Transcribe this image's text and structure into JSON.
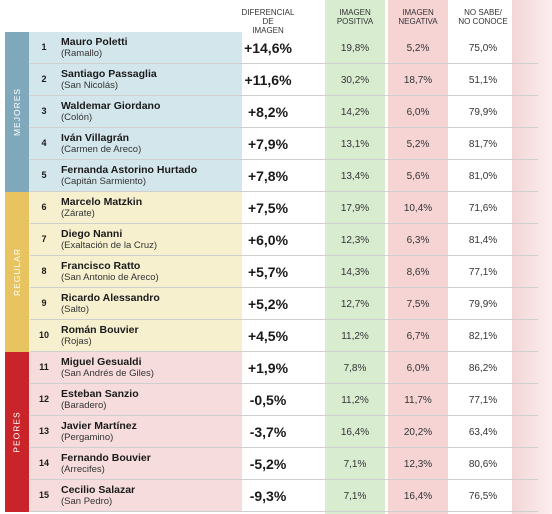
{
  "headers": {
    "diff": [
      "DIFERENCIAL DE",
      "IMAGEN"
    ],
    "pos": [
      "IMAGEN",
      "POSITIVA"
    ],
    "neg": [
      "IMAGEN",
      "NEGATIVA"
    ],
    "ns": [
      "NO SABE/",
      "NO CONOCE"
    ]
  },
  "colors": {
    "pos_column": "#d8ecd0",
    "neg_column": "#f6d4d4",
    "group_bg": [
      "#d3e6ec",
      "#f6f0cf",
      "#f6dcdc"
    ],
    "group_strip": [
      "#7fa8ba",
      "#e7c45f",
      "#c9242a"
    ]
  },
  "groups": [
    {
      "label": "MEJORES",
      "rows": 5
    },
    {
      "label": "REGULAR",
      "rows": 5
    },
    {
      "label": "PEORES",
      "rows": 5
    }
  ],
  "rows": [
    {
      "n": "1",
      "name": "Mauro Poletti",
      "place": "(Ramallo)",
      "diff": "+14,6%",
      "pos": "19,8%",
      "neg": "5,2%",
      "ns": "75,0%"
    },
    {
      "n": "2",
      "name": "Santiago Passaglia",
      "place": "(San Nicolás)",
      "diff": "+11,6%",
      "pos": "30,2%",
      "neg": "18,7%",
      "ns": "51,1%"
    },
    {
      "n": "3",
      "name": "Waldemar Giordano",
      "place": "(Colón)",
      "diff": "+8,2%",
      "pos": "14,2%",
      "neg": "6,0%",
      "ns": "79,9%"
    },
    {
      "n": "4",
      "name": "Iván Villagrán",
      "place": "(Carmen de Areco)",
      "diff": "+7,9%",
      "pos": "13,1%",
      "neg": "5,2%",
      "ns": "81,7%"
    },
    {
      "n": "5",
      "name": "Fernanda Astorino Hurtado",
      "place": "(Capitán Sarmiento)",
      "diff": "+7,8%",
      "pos": "13,4%",
      "neg": "5,6%",
      "ns": "81,0%"
    },
    {
      "n": "6",
      "name": "Marcelo Matzkin",
      "place": "(Zárate)",
      "diff": "+7,5%",
      "pos": "17,9%",
      "neg": "10,4%",
      "ns": "71,6%"
    },
    {
      "n": "7",
      "name": "Diego Nanni",
      "place": "(Exaltación de la Cruz)",
      "diff": "+6,0%",
      "pos": "12,3%",
      "neg": "6,3%",
      "ns": "81,4%"
    },
    {
      "n": "8",
      "name": "Francisco Ratto",
      "place": "(San Antonio de Areco)",
      "diff": "+5,7%",
      "pos": "14,3%",
      "neg": "8,6%",
      "ns": "77,1%"
    },
    {
      "n": "9",
      "name": "Ricardo Alessandro",
      "place": "(Salto)",
      "diff": "+5,2%",
      "pos": "12,7%",
      "neg": "7,5%",
      "ns": "79,9%"
    },
    {
      "n": "10",
      "name": "Román Bouvier",
      "place": "(Rojas)",
      "diff": "+4,5%",
      "pos": "11,2%",
      "neg": "6,7%",
      "ns": "82,1%"
    },
    {
      "n": "11",
      "name": "Miguel Gesualdi",
      "place": "(San Andrés de Giles)",
      "diff": "+1,9%",
      "pos": "7,8%",
      "neg": "6,0%",
      "ns": "86,2%"
    },
    {
      "n": "12",
      "name": "Esteban Sanzio",
      "place": "(Baradero)",
      "diff": "-0,5%",
      "pos": "11,2%",
      "neg": "11,7%",
      "ns": "77,1%"
    },
    {
      "n": "13",
      "name": "Javier Martínez",
      "place": "(Pergamino)",
      "diff": "-3,7%",
      "pos": "16,4%",
      "neg": "20,2%",
      "ns": "63,4%"
    },
    {
      "n": "14",
      "name": "Fernando Bouvier",
      "place": "(Arrecifes)",
      "diff": "-5,2%",
      "pos": "7,1%",
      "neg": "12,3%",
      "ns": "80,6%"
    },
    {
      "n": "15",
      "name": "Cecilio Salazar",
      "place": "(San Pedro)",
      "diff": "-9,3%",
      "pos": "7,1%",
      "neg": "16,4%",
      "ns": "76,5%"
    }
  ]
}
